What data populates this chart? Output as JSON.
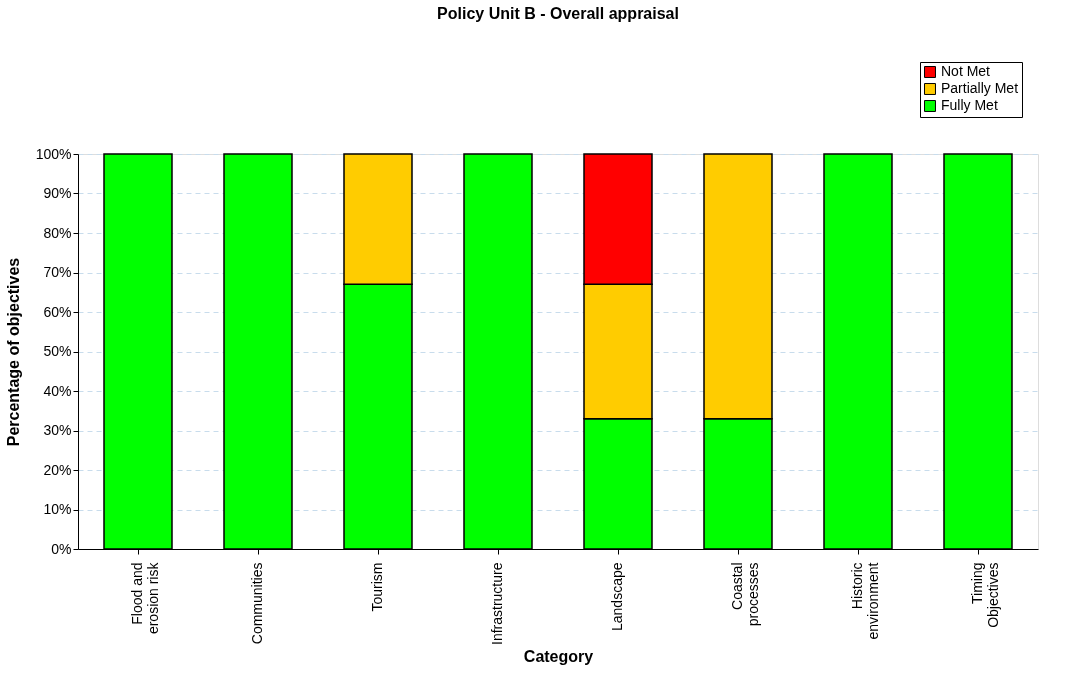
{
  "chart_data": {
    "type": "bar",
    "title": "Policy Unit B - Overall appraisal",
    "xlabel": "Category",
    "ylabel": "Percentage of objectives",
    "categories": [
      "Flood and erosion risk",
      "Communities",
      "Tourism",
      "Infrastructure",
      "Landscape",
      "Coastal processes",
      "Historic environment",
      "Timing Objectives"
    ],
    "stacked": true,
    "series": [
      {
        "name": "Fully Met",
        "color": "#00ff00",
        "values": [
          100,
          100,
          67,
          100,
          33,
          33,
          100,
          100
        ]
      },
      {
        "name": "Partially Met",
        "color": "#ffcc00",
        "values": [
          null,
          null,
          33,
          null,
          34,
          67,
          null,
          null
        ]
      },
      {
        "name": "Not Met",
        "color": "#ff0000",
        "values": [
          null,
          null,
          null,
          null,
          33,
          null,
          null,
          null
        ]
      }
    ],
    "ylim": [
      0,
      100
    ],
    "yticks": [
      {
        "value": 0,
        "label": "0%"
      },
      {
        "value": 10,
        "label": "10%"
      },
      {
        "value": 20,
        "label": "20%"
      },
      {
        "value": 30,
        "label": "30%"
      },
      {
        "value": 40,
        "label": "40%"
      },
      {
        "value": 50,
        "label": "50%"
      },
      {
        "value": 60,
        "label": "60%"
      },
      {
        "value": 70,
        "label": "70%"
      },
      {
        "value": 80,
        "label": "80%"
      },
      {
        "value": 90,
        "label": "90%"
      },
      {
        "value": 100,
        "label": "100%"
      }
    ],
    "grid": "y",
    "legend": "top right"
  }
}
